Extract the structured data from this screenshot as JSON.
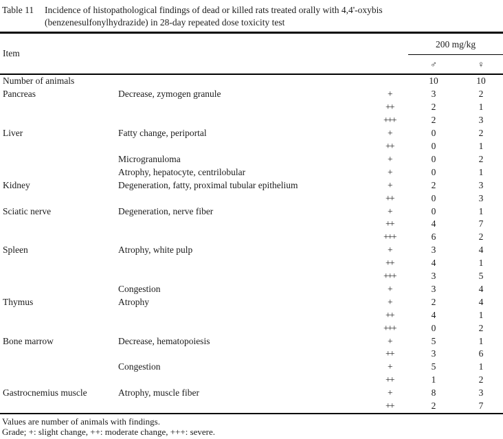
{
  "document": {
    "table_label": "Table 11",
    "title_lines": [
      "Incidence of histopathological findings of dead or killed rats treated orally with 4,4'-oxybis",
      "(benzenesulfonylhydrazide) in 28-day repeated dose toxicity test"
    ]
  },
  "table": {
    "header": {
      "item_label": "Item",
      "dose_group_label": "200 mg/kg",
      "male_symbol": "♂",
      "female_symbol": "♀"
    },
    "rows": [
      {
        "organ": "Number of animals",
        "finding": "",
        "grade": "",
        "male": "10",
        "female": "10"
      },
      {
        "organ": "Pancreas",
        "finding": "Decrease, zymogen granule",
        "grade": "+",
        "male": "3",
        "female": "2"
      },
      {
        "organ": "",
        "finding": "",
        "grade": "++",
        "male": "2",
        "female": "1"
      },
      {
        "organ": "",
        "finding": "",
        "grade": "+++",
        "male": "2",
        "female": "3"
      },
      {
        "organ": "Liver",
        "finding": "Fatty change, periportal",
        "grade": "+",
        "male": "0",
        "female": "2"
      },
      {
        "organ": "",
        "finding": "",
        "grade": "++",
        "male": "0",
        "female": "1"
      },
      {
        "organ": "",
        "finding": "Microgranuloma",
        "grade": "+",
        "male": "0",
        "female": "2"
      },
      {
        "organ": "",
        "finding": "Atrophy, hepatocyte, centrilobular",
        "grade": "+",
        "male": "0",
        "female": "1"
      },
      {
        "organ": "Kidney",
        "finding": "Degeneration, fatty, proximal tubular epithelium",
        "grade": "+",
        "male": "2",
        "female": "3"
      },
      {
        "organ": "",
        "finding": "",
        "grade": "++",
        "male": "0",
        "female": "3"
      },
      {
        "organ": "Sciatic nerve",
        "finding": "Degeneration, nerve fiber",
        "grade": "+",
        "male": "0",
        "female": "1"
      },
      {
        "organ": "",
        "finding": "",
        "grade": "++",
        "male": "4",
        "female": "7"
      },
      {
        "organ": "",
        "finding": "",
        "grade": "+++",
        "male": "6",
        "female": "2"
      },
      {
        "organ": "Spleen",
        "finding": "Atrophy, white pulp",
        "grade": "+",
        "male": "3",
        "female": "4"
      },
      {
        "organ": "",
        "finding": "",
        "grade": "++",
        "male": "4",
        "female": "1"
      },
      {
        "organ": "",
        "finding": "",
        "grade": "+++",
        "male": "3",
        "female": "5"
      },
      {
        "organ": "",
        "finding": "Congestion",
        "grade": "+",
        "male": "3",
        "female": "4"
      },
      {
        "organ": "Thymus",
        "finding": "Atrophy",
        "grade": "+",
        "male": "2",
        "female": "4"
      },
      {
        "organ": "",
        "finding": "",
        "grade": "++",
        "male": "4",
        "female": "1"
      },
      {
        "organ": "",
        "finding": "",
        "grade": "+++",
        "male": "0",
        "female": "2"
      },
      {
        "organ": "Bone marrow",
        "finding": "Decrease, hematopoiesis",
        "grade": "+",
        "male": "5",
        "female": "1"
      },
      {
        "organ": "",
        "finding": "",
        "grade": "++",
        "male": "3",
        "female": "6"
      },
      {
        "organ": "",
        "finding": "Congestion",
        "grade": "+",
        "male": "5",
        "female": "1"
      },
      {
        "organ": "",
        "finding": "",
        "grade": "++",
        "male": "1",
        "female": "2"
      },
      {
        "organ": "Gastrocnemius muscle",
        "finding": "Atrophy, muscle fiber",
        "grade": "+",
        "male": "8",
        "female": "3"
      },
      {
        "organ": "",
        "finding": "",
        "grade": "++",
        "male": "2",
        "female": "7"
      }
    ]
  },
  "footnotes": [
    "Values are number of animals with findings.",
    "Grade;  +: slight change, ++: moderate change, +++: severe."
  ],
  "colors": {
    "text": "#1b1b1b",
    "rule": "#000000",
    "background": "#ffffff"
  }
}
